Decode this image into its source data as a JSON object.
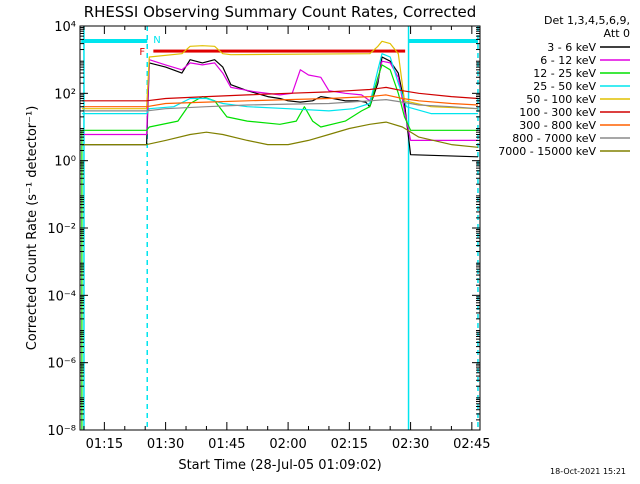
{
  "chart_data": {
    "type": "line",
    "title": "RHESSI Observing Summary Count Rates, Corrected",
    "xlabel": "Start Time (28-Jul-05 01:09:02)",
    "ylabel": "Corrected Count Rate (s⁻¹ detector⁻¹)",
    "yscale": "log",
    "ylim": [
      1e-08,
      10000.0
    ],
    "xlim": [
      "01:09:02",
      "02:47:00"
    ],
    "x_ticks": [
      "01:15",
      "01:30",
      "01:45",
      "02:00",
      "02:15",
      "02:30",
      "02:45"
    ],
    "y_ticks": [
      {
        "value": 1e-08,
        "label": "10⁻⁸"
      },
      {
        "value": 1e-06,
        "label": "10⁻⁶"
      },
      {
        "value": 0.0001,
        "label": "10⁻⁴"
      },
      {
        "value": 0.01,
        "label": "10⁻²"
      },
      {
        "value": 1,
        "label": "10⁰"
      },
      {
        "value": 100,
        "label": "10²"
      },
      {
        "value": 10000,
        "label": "10⁴"
      }
    ],
    "legend": {
      "placement": "right",
      "header": [
        "Det 1,3,4,5,6,9,",
        "Att 0"
      ]
    },
    "grid": false,
    "flags": {
      "F": {
        "label": "F",
        "start": "01:27:00",
        "end": "02:28:40",
        "level": 1800,
        "color": "#e00000"
      },
      "N": {
        "label": "N",
        "start": "01:25:30",
        "end": "02:29:30",
        "color": "#00e5ee"
      },
      "spans": [
        {
          "start": "01:09:20",
          "end": "01:25:30"
        },
        {
          "start": "02:29:30",
          "end": "02:46:30"
        }
      ],
      "vlines": [
        "01:10:00",
        "01:25:30",
        "02:29:30",
        "02:46:30"
      ]
    },
    "series": [
      {
        "name": "3 - 6 keV",
        "color": "#000000",
        "points": [
          [
            "01:09:30",
            3
          ],
          [
            "01:25:20",
            3
          ],
          [
            "01:26:00",
            800
          ],
          [
            "01:30:00",
            600
          ],
          [
            "01:34:00",
            400
          ],
          [
            "01:36:00",
            1000
          ],
          [
            "01:39:00",
            800
          ],
          [
            "01:42:00",
            1000
          ],
          [
            "01:44:00",
            600
          ],
          [
            "01:46:00",
            180
          ],
          [
            "01:50:00",
            120
          ],
          [
            "01:55:00",
            80
          ],
          [
            "01:58:00",
            70
          ],
          [
            "02:00:00",
            60
          ],
          [
            "02:03:00",
            55
          ],
          [
            "02:06:00",
            60
          ],
          [
            "02:08:00",
            80
          ],
          [
            "02:11:00",
            70
          ],
          [
            "02:14:00",
            60
          ],
          [
            "02:17:00",
            60
          ],
          [
            "02:19:00",
            55
          ],
          [
            "02:20:00",
            40
          ],
          [
            "02:22:00",
            200
          ],
          [
            "02:23:00",
            1200
          ],
          [
            "02:25:00",
            900
          ],
          [
            "02:27:00",
            400
          ],
          [
            "02:28:30",
            50
          ],
          [
            "02:30:00",
            1.5
          ],
          [
            "02:46:30",
            1.3
          ]
        ]
      },
      {
        "name": "6 - 12 keV",
        "color": "#e000e0",
        "points": [
          [
            "01:09:30",
            6
          ],
          [
            "01:25:20",
            6
          ],
          [
            "01:26:00",
            1000
          ],
          [
            "01:30:00",
            700
          ],
          [
            "01:34:00",
            500
          ],
          [
            "01:36:00",
            800
          ],
          [
            "01:39:00",
            700
          ],
          [
            "01:42:00",
            800
          ],
          [
            "01:44:00",
            400
          ],
          [
            "01:46:00",
            150
          ],
          [
            "01:52:00",
            110
          ],
          [
            "01:58:00",
            90
          ],
          [
            "02:01:00",
            100
          ],
          [
            "02:03:00",
            500
          ],
          [
            "02:05:00",
            350
          ],
          [
            "02:08:00",
            300
          ],
          [
            "02:10:00",
            120
          ],
          [
            "02:14:00",
            100
          ],
          [
            "02:18:00",
            90
          ],
          [
            "02:20:00",
            60
          ],
          [
            "02:22:00",
            250
          ],
          [
            "02:23:00",
            900
          ],
          [
            "02:25:00",
            800
          ],
          [
            "02:27:00",
            300
          ],
          [
            "02:28:30",
            30
          ],
          [
            "02:30:00",
            4
          ],
          [
            "02:46:30",
            4
          ]
        ]
      },
      {
        "name": "12 - 25 keV",
        "color": "#00e000",
        "points": [
          [
            "01:09:30",
            8
          ],
          [
            "01:25:20",
            8
          ],
          [
            "01:26:00",
            10
          ],
          [
            "01:33:00",
            15
          ],
          [
            "01:36:00",
            50
          ],
          [
            "01:39:00",
            80
          ],
          [
            "01:42:00",
            60
          ],
          [
            "01:45:00",
            20
          ],
          [
            "01:50:00",
            15
          ],
          [
            "01:58:00",
            12
          ],
          [
            "02:02:00",
            15
          ],
          [
            "02:04:00",
            40
          ],
          [
            "02:06:00",
            15
          ],
          [
            "02:08:00",
            10
          ],
          [
            "02:14:00",
            15
          ],
          [
            "02:18:00",
            30
          ],
          [
            "02:20:00",
            40
          ],
          [
            "02:22:00",
            300
          ],
          [
            "02:23:00",
            700
          ],
          [
            "02:25:00",
            500
          ],
          [
            "02:27:00",
            100
          ],
          [
            "02:28:30",
            20
          ],
          [
            "02:30:00",
            8
          ],
          [
            "02:46:30",
            8
          ]
        ]
      },
      {
        "name": "25 - 50 keV",
        "color": "#00e5ee",
        "points": [
          [
            "01:09:30",
            25
          ],
          [
            "01:25:20",
            25
          ],
          [
            "01:26:00",
            35
          ],
          [
            "01:32:00",
            40
          ],
          [
            "01:36:00",
            70
          ],
          [
            "01:40:00",
            70
          ],
          [
            "01:44:00",
            50
          ],
          [
            "01:50:00",
            40
          ],
          [
            "02:00:00",
            35
          ],
          [
            "02:10:00",
            30
          ],
          [
            "02:16:00",
            35
          ],
          [
            "02:20:00",
            50
          ],
          [
            "02:22:00",
            500
          ],
          [
            "02:23:00",
            1500
          ],
          [
            "02:25:00",
            1200
          ],
          [
            "02:27:00",
            200
          ],
          [
            "02:29:00",
            40
          ],
          [
            "02:35:00",
            25
          ],
          [
            "02:46:30",
            25
          ]
        ]
      },
      {
        "name": "50 - 100 keV",
        "color": "#e0c000",
        "points": [
          [
            "01:09:30",
            35
          ],
          [
            "01:25:20",
            35
          ],
          [
            "01:26:00",
            1200
          ],
          [
            "01:34:00",
            1500
          ],
          [
            "01:36:00",
            2500
          ],
          [
            "01:39:00",
            2600
          ],
          [
            "01:42:00",
            2500
          ],
          [
            "01:44:00",
            1500
          ],
          [
            "01:46:00",
            1400
          ],
          [
            "02:20:00",
            1500
          ],
          [
            "02:22:00",
            2500
          ],
          [
            "02:23:00",
            3500
          ],
          [
            "02:25:00",
            3000
          ],
          [
            "02:27:00",
            1500
          ],
          [
            "02:28:30",
            60
          ],
          [
            "02:35:00",
            40
          ],
          [
            "02:46:30",
            35
          ]
        ]
      },
      {
        "name": "100 - 300 keV",
        "color": "#d00000",
        "points": [
          [
            "01:09:30",
            60
          ],
          [
            "01:25:20",
            60
          ],
          [
            "01:30:00",
            70
          ],
          [
            "01:40:00",
            80
          ],
          [
            "01:50:00",
            90
          ],
          [
            "02:00:00",
            100
          ],
          [
            "02:10:00",
            110
          ],
          [
            "02:15:00",
            120
          ],
          [
            "02:20:00",
            130
          ],
          [
            "02:24:00",
            150
          ],
          [
            "02:28:00",
            120
          ],
          [
            "02:32:00",
            100
          ],
          [
            "02:40:00",
            80
          ],
          [
            "02:46:30",
            70
          ]
        ]
      },
      {
        "name": "300 - 800 keV",
        "color": "#ff6000",
        "points": [
          [
            "01:09:30",
            40
          ],
          [
            "01:25:20",
            40
          ],
          [
            "01:30:00",
            50
          ],
          [
            "01:40:00",
            55
          ],
          [
            "01:50:00",
            60
          ],
          [
            "02:00:00",
            65
          ],
          [
            "02:10:00",
            70
          ],
          [
            "02:15:00",
            75
          ],
          [
            "02:20:00",
            80
          ],
          [
            "02:24:00",
            90
          ],
          [
            "02:28:00",
            70
          ],
          [
            "02:32:00",
            60
          ],
          [
            "02:40:00",
            50
          ],
          [
            "02:46:30",
            45
          ]
        ]
      },
      {
        "name": "800 - 7000 keV",
        "color": "#8a8a8a",
        "points": [
          [
            "01:09:30",
            30
          ],
          [
            "01:25:20",
            30
          ],
          [
            "01:30:00",
            35
          ],
          [
            "01:40:00",
            40
          ],
          [
            "01:50:00",
            45
          ],
          [
            "02:00:00",
            48
          ],
          [
            "02:10:00",
            50
          ],
          [
            "02:15:00",
            55
          ],
          [
            "02:20:00",
            60
          ],
          [
            "02:24:00",
            65
          ],
          [
            "02:28:00",
            55
          ],
          [
            "02:32:00",
            45
          ],
          [
            "02:40:00",
            40
          ],
          [
            "02:46:30",
            35
          ]
        ]
      },
      {
        "name": "7000 - 15000 keV",
        "color": "#808000",
        "points": [
          [
            "01:09:30",
            3
          ],
          [
            "01:25:20",
            3
          ],
          [
            "01:30:00",
            4
          ],
          [
            "01:36:00",
            6
          ],
          [
            "01:40:00",
            7
          ],
          [
            "01:44:00",
            6
          ],
          [
            "01:50:00",
            4
          ],
          [
            "01:55:00",
            3
          ],
          [
            "02:00:00",
            3
          ],
          [
            "02:05:00",
            4
          ],
          [
            "02:10:00",
            6
          ],
          [
            "02:15:00",
            9
          ],
          [
            "02:20:00",
            12
          ],
          [
            "02:24:00",
            14
          ],
          [
            "02:28:00",
            10
          ],
          [
            "02:32:00",
            5
          ],
          [
            "02:40:00",
            3
          ],
          [
            "02:46:30",
            2.5
          ]
        ]
      }
    ]
  },
  "timestamp": "18-Oct-2021 15:21"
}
